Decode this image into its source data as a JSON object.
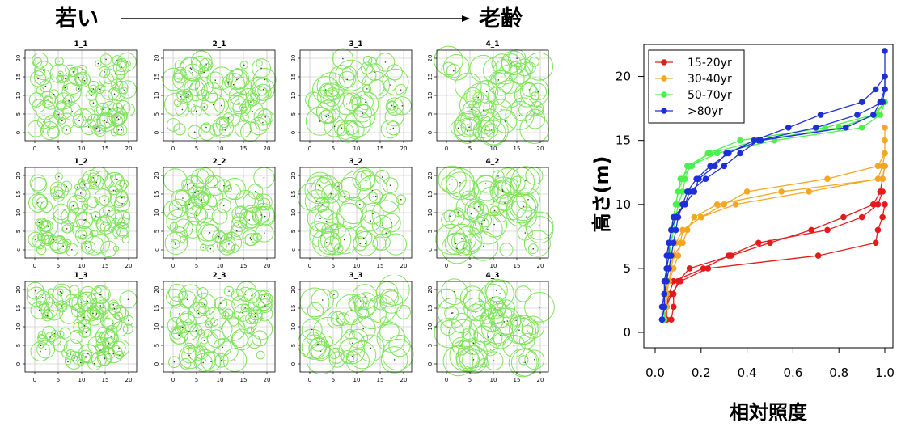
{
  "header": {
    "left_label": "若い",
    "right_label": "老齢"
  },
  "panels": {
    "titles": [
      "1_1",
      "2_1",
      "3_1",
      "4_1",
      "1_2",
      "2_2",
      "3_2",
      "4_2",
      "1_3",
      "2_3",
      "3_3",
      "4_3"
    ],
    "x_ticks": [
      0,
      5,
      10,
      15,
      20
    ],
    "y_ticks": [
      0,
      5,
      10,
      15,
      20
    ],
    "y_tick_labels": [
      "0",
      "5",
      "10",
      "15",
      "20"
    ],
    "y_tick_labels_row2": [
      "c",
      "5",
      "10",
      "15",
      "20"
    ],
    "circle_color": "#7fe35a",
    "point_color": "#333333"
  },
  "chart_data": {
    "type": "line",
    "xlabel": "相対照度",
    "ylabel": "高さ(m)",
    "xlim": [
      0,
      1
    ],
    "ylim": [
      0,
      22
    ],
    "x_ticks": [
      "0.0",
      "0.2",
      "0.4",
      "0.6",
      "0.8",
      "1.0"
    ],
    "y_ticks": [
      "0",
      "5",
      "10",
      "15",
      "20"
    ],
    "legend": {
      "placement": "top-left"
    },
    "series": [
      {
        "name": "15-20yr",
        "color": "#e41a1c",
        "lines": [
          [
            [
              0.07,
              1
            ],
            [
              0.08,
              2
            ],
            [
              0.08,
              3
            ],
            [
              0.1,
              4
            ],
            [
              0.15,
              5
            ],
            [
              0.33,
              6
            ],
            [
              0.5,
              7
            ],
            [
              0.68,
              8
            ],
            [
              0.82,
              9
            ],
            [
              0.95,
              10
            ],
            [
              0.98,
              11
            ],
            [
              0.99,
              12
            ],
            [
              1.0,
              13
            ]
          ],
          [
            [
              0.04,
              1
            ],
            [
              0.05,
              2
            ],
            [
              0.06,
              3
            ],
            [
              0.08,
              4
            ],
            [
              0.21,
              5
            ],
            [
              0.32,
              6
            ],
            [
              0.45,
              7
            ],
            [
              0.75,
              8
            ],
            [
              0.9,
              9
            ],
            [
              0.97,
              10
            ],
            [
              0.99,
              11
            ]
          ],
          [
            [
              0.05,
              1
            ],
            [
              0.05,
              2
            ],
            [
              0.07,
              3
            ],
            [
              0.11,
              4
            ],
            [
              0.23,
              5
            ],
            [
              0.71,
              6
            ],
            [
              0.96,
              7
            ],
            [
              0.97,
              8
            ],
            [
              0.99,
              9
            ],
            [
              1.0,
              10
            ]
          ]
        ]
      },
      {
        "name": "30-40yr",
        "color": "#f5a623",
        "lines": [
          [
            [
              0.04,
              1
            ],
            [
              0.05,
              2
            ],
            [
              0.05,
              3
            ],
            [
              0.06,
              4
            ],
            [
              0.08,
              5
            ],
            [
              0.1,
              6
            ],
            [
              0.11,
              7
            ],
            [
              0.12,
              8
            ],
            [
              0.2,
              9
            ],
            [
              0.35,
              10
            ],
            [
              0.67,
              11
            ],
            [
              0.97,
              12
            ],
            [
              0.99,
              13
            ],
            [
              1.0,
              14
            ]
          ],
          [
            [
              0.04,
              1
            ],
            [
              0.04,
              2
            ],
            [
              0.05,
              3
            ],
            [
              0.05,
              4
            ],
            [
              0.06,
              5
            ],
            [
              0.08,
              6
            ],
            [
              0.12,
              7
            ],
            [
              0.14,
              8
            ],
            [
              0.17,
              9
            ],
            [
              0.27,
              10
            ],
            [
              0.55,
              11
            ],
            [
              0.99,
              12
            ],
            [
              1.0,
              13
            ]
          ],
          [
            [
              0.04,
              1
            ],
            [
              0.04,
              2
            ],
            [
              0.05,
              3
            ],
            [
              0.06,
              4
            ],
            [
              0.07,
              5
            ],
            [
              0.08,
              6
            ],
            [
              0.09,
              7
            ],
            [
              0.12,
              8
            ],
            [
              0.2,
              9
            ],
            [
              0.3,
              10
            ],
            [
              0.4,
              11
            ],
            [
              0.75,
              12
            ],
            [
              0.97,
              13
            ],
            [
              1.0,
              14
            ],
            [
              1.0,
              15
            ],
            [
              1.0,
              16
            ]
          ]
        ]
      },
      {
        "name": "50-70yr",
        "color": "#4cf04c",
        "lines": [
          [
            [
              0.03,
              1
            ],
            [
              0.04,
              2
            ],
            [
              0.04,
              3
            ],
            [
              0.05,
              4
            ],
            [
              0.05,
              5
            ],
            [
              0.06,
              6
            ],
            [
              0.07,
              7
            ],
            [
              0.07,
              8
            ],
            [
              0.08,
              9
            ],
            [
              0.09,
              10
            ],
            [
              0.1,
              11
            ],
            [
              0.12,
              12
            ],
            [
              0.14,
              13
            ],
            [
              0.24,
              14
            ],
            [
              0.45,
              15
            ],
            [
              0.8,
              16
            ],
            [
              0.96,
              17
            ],
            [
              1.0,
              18
            ]
          ],
          [
            [
              0.03,
              1
            ],
            [
              0.04,
              2
            ],
            [
              0.04,
              3
            ],
            [
              0.05,
              4
            ],
            [
              0.05,
              5
            ],
            [
              0.06,
              6
            ],
            [
              0.07,
              7
            ],
            [
              0.08,
              8
            ],
            [
              0.09,
              9
            ],
            [
              0.1,
              10
            ],
            [
              0.12,
              11
            ],
            [
              0.13,
              12
            ],
            [
              0.15,
              13
            ],
            [
              0.27,
              14
            ],
            [
              0.52,
              15
            ],
            [
              0.9,
              16
            ],
            [
              0.98,
              17
            ],
            [
              1.0,
              18
            ]
          ],
          [
            [
              0.04,
              1
            ],
            [
              0.04,
              2
            ],
            [
              0.04,
              3
            ],
            [
              0.05,
              4
            ],
            [
              0.05,
              5
            ],
            [
              0.06,
              6
            ],
            [
              0.07,
              7
            ],
            [
              0.07,
              8
            ],
            [
              0.08,
              9
            ],
            [
              0.09,
              10
            ],
            [
              0.1,
              11
            ],
            [
              0.11,
              12
            ],
            [
              0.16,
              13
            ],
            [
              0.23,
              14
            ],
            [
              0.37,
              15
            ],
            [
              0.74,
              16
            ],
            [
              0.95,
              17
            ],
            [
              1.0,
              18
            ]
          ]
        ]
      },
      {
        "name": ">80yr",
        "color": "#1f2fd6",
        "lines": [
          [
            [
              0.03,
              1
            ],
            [
              0.04,
              2
            ],
            [
              0.04,
              3
            ],
            [
              0.05,
              4
            ],
            [
              0.05,
              5
            ],
            [
              0.06,
              6
            ],
            [
              0.06,
              7
            ],
            [
              0.07,
              8
            ],
            [
              0.08,
              9
            ],
            [
              0.13,
              10
            ],
            [
              0.15,
              11
            ],
            [
              0.22,
              12
            ],
            [
              0.3,
              13
            ],
            [
              0.37,
              14
            ],
            [
              0.45,
              15
            ],
            [
              0.7,
              16
            ],
            [
              0.88,
              17
            ],
            [
              0.99,
              18
            ],
            [
              1.0,
              19
            ],
            [
              1.0,
              20
            ]
          ],
          [
            [
              0.03,
              1
            ],
            [
              0.03,
              2
            ],
            [
              0.04,
              3
            ],
            [
              0.04,
              4
            ],
            [
              0.05,
              5
            ],
            [
              0.05,
              6
            ],
            [
              0.06,
              7
            ],
            [
              0.07,
              8
            ],
            [
              0.09,
              9
            ],
            [
              0.13,
              10
            ],
            [
              0.17,
              11
            ],
            [
              0.19,
              12
            ],
            [
              0.26,
              13
            ],
            [
              0.31,
              14
            ],
            [
              0.46,
              15
            ],
            [
              0.83,
              16
            ],
            [
              0.95,
              17
            ],
            [
              0.98,
              18
            ],
            [
              1.0,
              19
            ],
            [
              1.0,
              22
            ]
          ],
          [
            [
              0.03,
              1
            ],
            [
              0.04,
              2
            ],
            [
              0.04,
              3
            ],
            [
              0.05,
              4
            ],
            [
              0.06,
              5
            ],
            [
              0.07,
              6
            ],
            [
              0.08,
              7
            ],
            [
              0.09,
              8
            ],
            [
              0.1,
              9
            ],
            [
              0.12,
              10
            ],
            [
              0.14,
              11
            ],
            [
              0.18,
              12
            ],
            [
              0.24,
              13
            ],
            [
              0.32,
              14
            ],
            [
              0.43,
              15
            ],
            [
              0.58,
              16
            ],
            [
              0.72,
              17
            ],
            [
              0.9,
              18
            ],
            [
              0.96,
              19
            ],
            [
              1.0,
              20
            ]
          ]
        ]
      }
    ]
  }
}
